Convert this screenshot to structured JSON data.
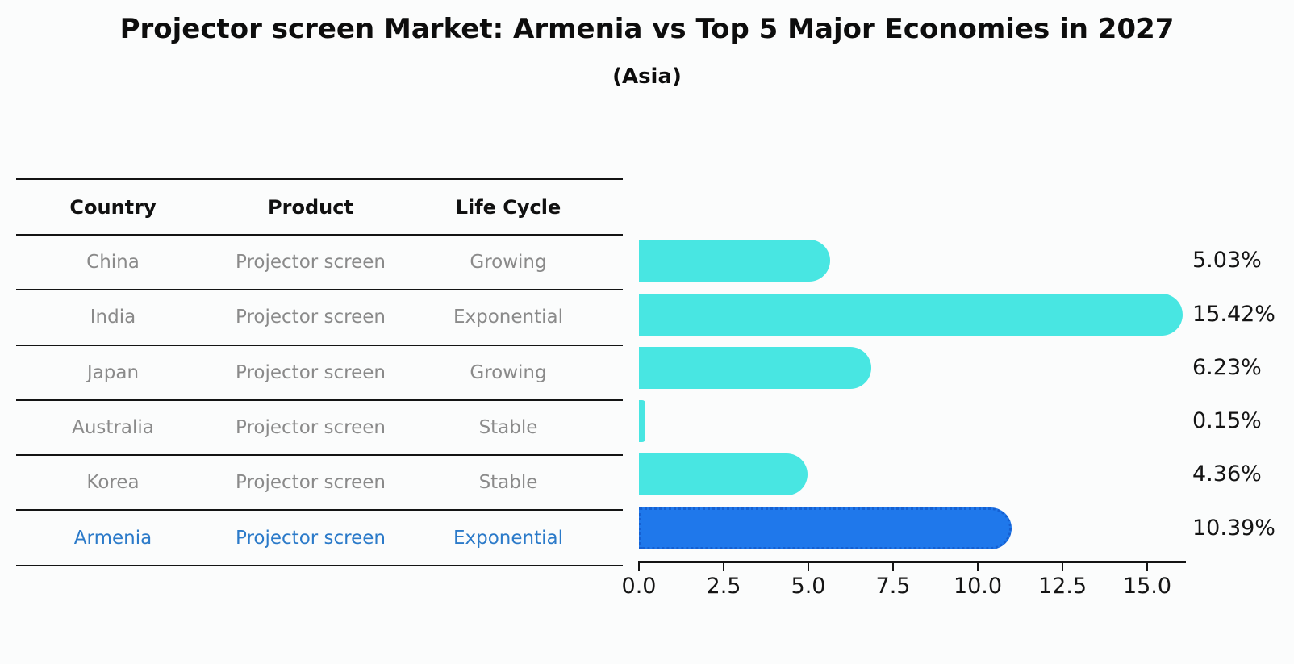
{
  "page": {
    "title": "Projector screen Market: Armenia vs Top 5 Major Economies in 2027",
    "subtitle": "(Asia)"
  },
  "table": {
    "columns": [
      "Country",
      "Product",
      "Life Cycle"
    ],
    "rows": [
      {
        "country": "China",
        "product": "Projector screen",
        "life_cycle": "Growing"
      },
      {
        "country": "India",
        "product": "Projector screen",
        "life_cycle": "Exponential"
      },
      {
        "country": "Japan",
        "product": "Projector screen",
        "life_cycle": "Growing"
      },
      {
        "country": "Australia",
        "product": "Projector screen",
        "life_cycle": "Stable"
      },
      {
        "country": "Korea",
        "product": "Projector screen",
        "life_cycle": "Stable"
      },
      {
        "country": "Armenia",
        "product": "Projector screen",
        "life_cycle": "Exponential"
      }
    ],
    "highlight_row": "Armenia"
  },
  "chart_data": {
    "type": "bar",
    "orientation": "horizontal",
    "title": "Projector screen Market: Armenia vs Top 5 Major Economies in 2027",
    "subtitle": "(Asia)",
    "categories": [
      "China",
      "India",
      "Japan",
      "Australia",
      "Korea",
      "Armenia"
    ],
    "values": [
      5.03,
      15.42,
      6.23,
      0.15,
      4.36,
      10.39
    ],
    "value_labels": [
      "5.03%",
      "15.42%",
      "6.23%",
      "0.15%",
      "4.36%",
      "10.39%"
    ],
    "x_ticks": [
      0,
      2.5,
      5,
      7.5,
      10,
      12.5,
      15
    ],
    "x_tick_labels": [
      "0.0",
      "2.5",
      "5.0",
      "7.5",
      "10.0",
      "12.5",
      "15.0"
    ],
    "xlim": [
      0,
      16.2
    ],
    "grid": false,
    "legend": null,
    "highlight_index": 5,
    "bar_color": "#48E6E2",
    "highlight_color": "#1F78EB",
    "highlight_edge_color": "#1560D2"
  },
  "colors": {
    "bar": "#48E6E2",
    "highlight_bar": "#1F78EB",
    "highlight_text": "#2B7AC9",
    "table_text": "#8A8A8A",
    "header_text": "#111111",
    "axis": "#141414",
    "background": "#FBFCFC"
  }
}
